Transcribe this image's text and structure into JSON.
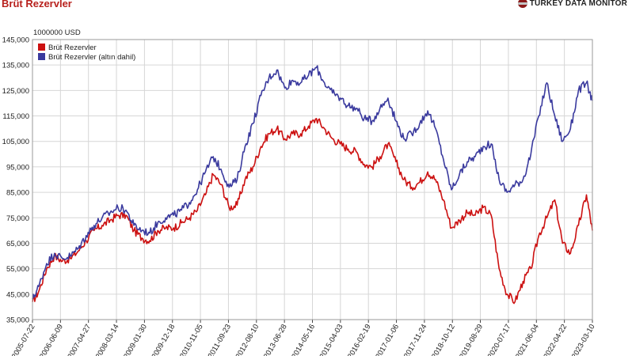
{
  "header": {
    "title": "Brüt Rezervler",
    "brand": "TURKEY DATA MONITOR"
  },
  "colors": {
    "series1": "#cc1111",
    "series2": "#3a3a9e",
    "grid": "#d6d6d6",
    "axis": "#444444",
    "title": "#b8211d"
  },
  "chart_data": {
    "type": "line",
    "title": "Brüt Rezervler",
    "ylabel": "1000000 USD",
    "ylim": [
      35000,
      145000
    ],
    "yticks": [
      35000,
      45000,
      55000,
      65000,
      75000,
      85000,
      95000,
      105000,
      115000,
      125000,
      135000,
      145000
    ],
    "ytick_labels": [
      "35,000",
      "45,000",
      "55,000",
      "65,000",
      "75,000",
      "85,000",
      "95,000",
      "105,000",
      "115,000",
      "125,000",
      "135,000",
      "145,000"
    ],
    "xtick_labels": [
      "2005-07-22",
      "2006-06-09",
      "2007-04-27",
      "2008-03-14",
      "2009-01-30",
      "2009-12-18",
      "2010-11-05",
      "2011-09-23",
      "2012-08-10",
      "2013-06-28",
      "2014-05-16",
      "2015-04-03",
      "2016-02-19",
      "2017-01-06",
      "2017-11-24",
      "2018-10-12",
      "2019-08-29",
      "2020-07-17",
      "2021-06-04",
      "2022-04-22",
      "2023-03-10"
    ],
    "grid": true,
    "legend_position": "top-left",
    "x": [
      "2005-07-22",
      "2005-10-01",
      "2006-01-01",
      "2006-04-01",
      "2006-07-01",
      "2006-10-01",
      "2007-01-01",
      "2007-04-01",
      "2007-07-01",
      "2007-10-01",
      "2008-01-01",
      "2008-04-01",
      "2008-07-01",
      "2008-10-01",
      "2009-01-01",
      "2009-04-01",
      "2009-07-01",
      "2009-10-01",
      "2010-01-01",
      "2010-04-01",
      "2010-07-01",
      "2010-10-01",
      "2011-01-01",
      "2011-04-01",
      "2011-07-01",
      "2011-10-01",
      "2012-01-01",
      "2012-04-01",
      "2012-07-01",
      "2012-10-01",
      "2013-01-01",
      "2013-04-01",
      "2013-07-01",
      "2013-10-01",
      "2014-01-01",
      "2014-04-01",
      "2014-07-01",
      "2014-10-01",
      "2015-01-01",
      "2015-04-01",
      "2015-07-01",
      "2015-10-01",
      "2016-01-01",
      "2016-04-01",
      "2016-07-01",
      "2016-10-01",
      "2017-01-01",
      "2017-04-01",
      "2017-07-01",
      "2017-10-01",
      "2018-01-01",
      "2018-04-01",
      "2018-07-01",
      "2018-10-01",
      "2019-01-01",
      "2019-04-01",
      "2019-07-01",
      "2019-10-01",
      "2020-01-01",
      "2020-04-01",
      "2020-07-01",
      "2020-10-01",
      "2021-01-01",
      "2021-04-01",
      "2021-07-01",
      "2021-10-01",
      "2022-01-01",
      "2022-04-01",
      "2022-07-01",
      "2022-10-01",
      "2023-01-01",
      "2023-03-10"
    ],
    "series": [
      {
        "name": "Brüt Rezervler",
        "color": "#cc1111",
        "values": [
          42000,
          46000,
          55000,
          60000,
          58000,
          59000,
          62000,
          66000,
          70000,
          72000,
          74000,
          76000,
          76000,
          70000,
          67000,
          66000,
          70000,
          71000,
          71000,
          73000,
          75000,
          78000,
          84000,
          92000,
          88000,
          79000,
          80000,
          90000,
          95000,
          103000,
          108000,
          110000,
          106000,
          108000,
          108000,
          111000,
          114000,
          110000,
          106000,
          104000,
          102000,
          101000,
          96000,
          95000,
          99000,
          104000,
          97000,
          90000,
          87000,
          89000,
          93000,
          90000,
          82000,
          71000,
          74000,
          77000,
          76000,
          79000,
          76000,
          55000,
          45000,
          42000,
          50000,
          55000,
          68000,
          75000,
          82000,
          65000,
          61000,
          72000,
          84000,
          70000
        ]
      },
      {
        "name": "Brüt Rezervler (altın dahil)",
        "color": "#3a3a9e",
        "values": [
          43000,
          48000,
          57000,
          61000,
          59000,
          60000,
          63000,
          68000,
          72000,
          75000,
          77000,
          79000,
          78000,
          72000,
          70000,
          69000,
          73000,
          75000,
          76000,
          78000,
          81000,
          86000,
          93000,
          99000,
          94000,
          87000,
          90000,
          103000,
          112000,
          123000,
          130000,
          133000,
          126000,
          129000,
          128000,
          131000,
          134000,
          128000,
          124000,
          122000,
          119000,
          118000,
          114000,
          113000,
          118000,
          122000,
          113000,
          106000,
          108000,
          112000,
          117000,
          110000,
          98000,
          86000,
          92000,
          97000,
          99000,
          103000,
          104000,
          90000,
          85000,
          88000,
          90000,
          100000,
          115000,
          128000,
          115000,
          105000,
          110000,
          125000,
          128000,
          121000
        ]
      }
    ]
  }
}
